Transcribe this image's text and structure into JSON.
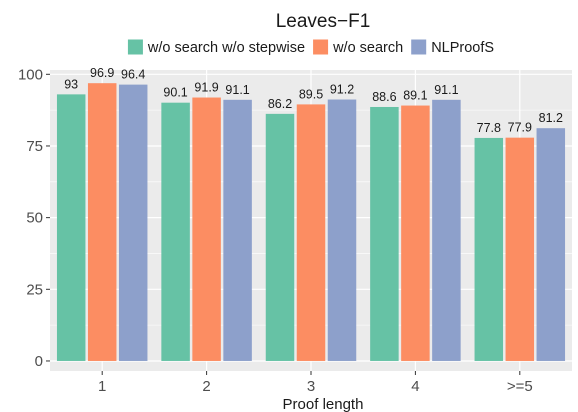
{
  "chart_data": {
    "type": "bar",
    "title": "Leaves−F1",
    "xlabel": "Proof length",
    "ylabel": "",
    "categories": [
      "1",
      "2",
      "3",
      "4",
      ">=5"
    ],
    "series": [
      {
        "name": "w/o search w/o stepwise",
        "color": "#66c2a5",
        "values": [
          93,
          90.1,
          86.2,
          88.6,
          77.8
        ],
        "labels": [
          "93",
          "90.1",
          "86.2",
          "88.6",
          "77.8"
        ]
      },
      {
        "name": "w/o search",
        "color": "#fc8d62",
        "values": [
          96.9,
          91.9,
          89.5,
          89.1,
          77.9
        ],
        "labels": [
          "96.9",
          "91.9",
          "89.5",
          "89.1",
          "77.9"
        ]
      },
      {
        "name": "NLProofS",
        "color": "#8da0cb",
        "values": [
          96.4,
          91.1,
          91.2,
          91.1,
          81.2
        ],
        "labels": [
          "96.4",
          "91.1",
          "91.2",
          "91.1",
          "81.2"
        ]
      }
    ],
    "ylim": [
      -3.5,
      101.5
    ],
    "yticks": [
      0,
      25,
      50,
      75,
      100
    ],
    "ytick_labels": [
      "0",
      "25",
      "50",
      "75",
      "100"
    ],
    "grid": true,
    "legend_position": "top",
    "panel_background": "#ebebeb"
  }
}
